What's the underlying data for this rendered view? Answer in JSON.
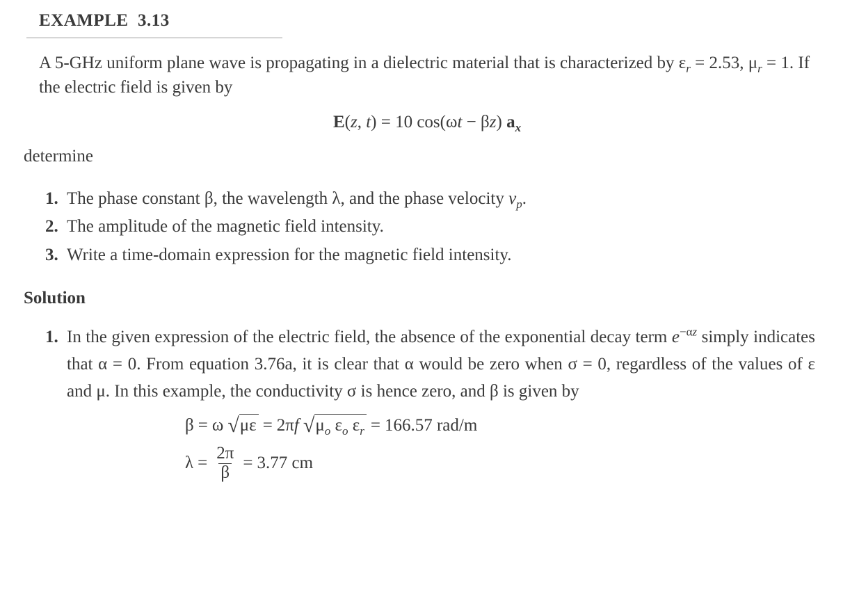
{
  "document": {
    "text_color": "#3a3a3a",
    "background_color": "#ffffff",
    "font_family": "Times New Roman",
    "body_fontsize_pt": 19,
    "heading_fontsize_pt": 19,
    "line_height": 1.42,
    "hr_color": "#9a9a9a"
  },
  "heading": {
    "label_prefix": "EXAMPLE",
    "number": "3.13"
  },
  "problem": {
    "para_pre": "A 5-GHz uniform plane wave is propagating in a dielectric material that is characterized by ",
    "e_r_sym": "ε",
    "e_r_sub": "r",
    "eq": " = ",
    "e_r_val": "2.53",
    "sep": ", ",
    "mu_r_sym": "μ",
    "mu_r_sub": "r",
    "mu_r_val": "1",
    "para_post": ". If the electric field is given by",
    "equation": {
      "lhs_E": "E",
      "lhs_args_open": "(",
      "lhs_z": "z",
      "lhs_comma": ", ",
      "lhs_t": "t",
      "lhs_args_close": ")",
      "eq": " = ",
      "amp": "10",
      "cos": " cos(",
      "omega": "ω",
      "t": "t",
      "minus": " − ",
      "beta": "β",
      "z": "z",
      "close": ") ",
      "a": "a",
      "a_sub": "x"
    },
    "determine": "determine",
    "items": [
      {
        "pre": "The phase constant ",
        "s1": "β",
        "mid1": ", the wavelength ",
        "s2": "λ",
        "mid2": ", and the phase velocity ",
        "s3": "v",
        "s3_sub": "p",
        "post": "."
      },
      {
        "text": "The amplitude of the magnetic field intensity."
      },
      {
        "text": "Write a time-domain expression for the magnetic field intensity."
      }
    ]
  },
  "solution": {
    "label": "Solution",
    "item1": {
      "pre": "In the given expression of the electric field, the absence of the exponential decay term ",
      "e": "e",
      "exp_minus": "−",
      "exp_alpha": "α",
      "exp_z": "z",
      "mid1": " simply indicates that ",
      "alpha": "α",
      "eq0a": " = 0. From equation 3.76a, it is clear that ",
      "alpha2": "α",
      "mid2": " would be zero when ",
      "sigma": "σ",
      "eq0b": " = 0, regardless of the values of ",
      "eps": "ε",
      "and": " and ",
      "mu": "μ",
      "mid3": ". In this example, the conductivity ",
      "sigma2": "σ",
      "mid4": " is hence zero, and ",
      "beta": "β",
      "post": " is given by"
    },
    "beta_eq": {
      "beta": "β",
      "eq1": " = ",
      "omega": "ω",
      "rad1": "με",
      "eq2": " = ",
      "two_pi_f_a": "2π",
      "two_pi_f_b": "f ",
      "rad2_mu": "μ",
      "rad2_mu_sub": "o",
      "rad2_sp1": " ",
      "rad2_eps": "ε",
      "rad2_eps_sub": "o",
      "rad2_sp2": " ",
      "rad2_epsr": "ε",
      "rad2_epsr_sub": "r",
      "eq3": " = ",
      "val": "166.57",
      "unit": " rad/m"
    },
    "lambda_eq": {
      "lambda": "λ",
      "eq1": " = ",
      "num": "2π",
      "den": "β",
      "eq2": " = ",
      "val": "3.77",
      "unit": " cm"
    }
  }
}
